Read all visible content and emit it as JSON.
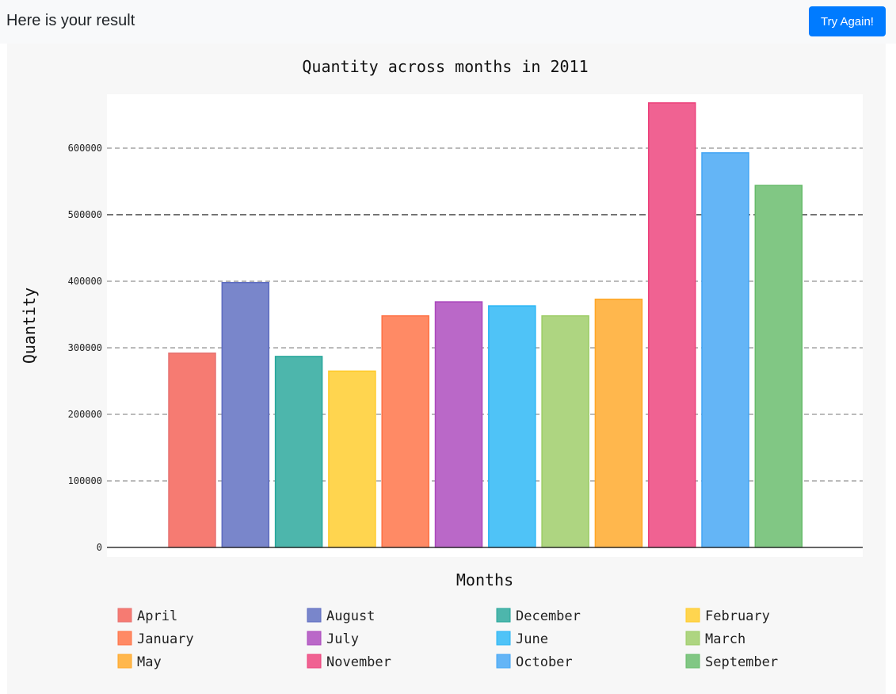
{
  "header": {
    "result_text": "Here is your result",
    "try_again_label": "Try Again!"
  },
  "chart_data": {
    "type": "bar",
    "title": "Quantity across months in 2011",
    "xlabel": "Months",
    "ylabel": "Quantity",
    "ylim": [
      0,
      680000
    ],
    "y_ticks": [
      0,
      100000,
      200000,
      300000,
      400000,
      500000,
      600000
    ],
    "y_tick_labels": [
      "0",
      "100000",
      "200000",
      "300000",
      "400000",
      "500000",
      "600000"
    ],
    "highlight_line": 500000,
    "grid": true,
    "legend_position": "bottom",
    "categories": [
      "April",
      "August",
      "December",
      "February",
      "January",
      "July",
      "June",
      "March",
      "May",
      "November",
      "October",
      "September"
    ],
    "values": [
      292000,
      398000,
      287000,
      265000,
      348000,
      369000,
      363000,
      348000,
      373000,
      668000,
      593000,
      544000
    ],
    "colors": [
      "#f67b72",
      "#7986cb",
      "#4db6ac",
      "#ffd54f",
      "#ff8a65",
      "#ba68c8",
      "#4fc3f7",
      "#aed581",
      "#ffb74d",
      "#f06292",
      "#64b5f6",
      "#81c784"
    ],
    "border_colors": [
      "#e57373",
      "#5c6bc0",
      "#26a69a",
      "#ffca28",
      "#ff7043",
      "#ab47bc",
      "#29b6f6",
      "#9ccc65",
      "#ffa726",
      "#ec407a",
      "#42a5f5",
      "#66bb6a"
    ]
  }
}
